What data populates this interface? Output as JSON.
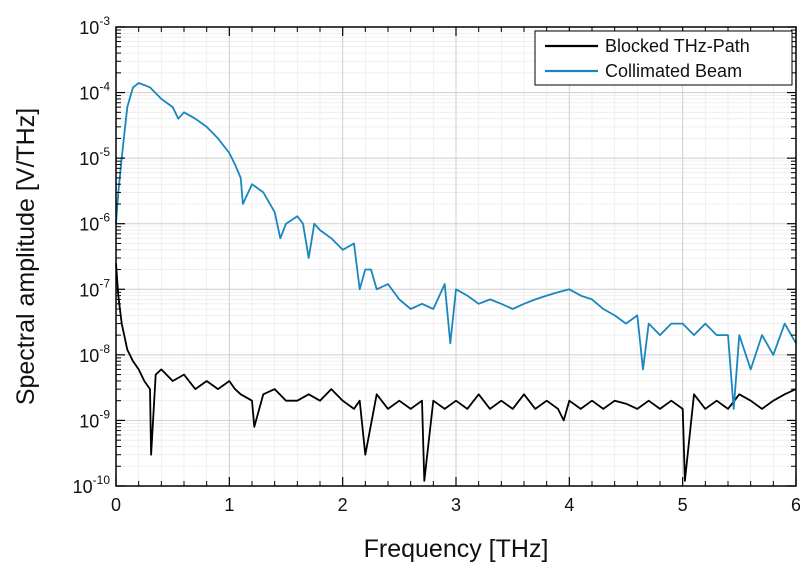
{
  "chart_data": {
    "type": "line",
    "xlabel": "Frequency [THz]",
    "ylabel": "Spectral amplitude [V/THz]",
    "xlim": [
      0,
      6
    ],
    "ylim": [
      1e-10,
      0.001
    ],
    "y_scale": "log",
    "grid": true,
    "minor_grid": true,
    "legend_position": "top-right",
    "x_ticks": [
      {
        "value": 0,
        "label": "0"
      },
      {
        "value": 1,
        "label": "1"
      },
      {
        "value": 2,
        "label": "2"
      },
      {
        "value": 3,
        "label": "3"
      },
      {
        "value": 4,
        "label": "4"
      },
      {
        "value": 5,
        "label": "5"
      },
      {
        "value": 6,
        "label": "6"
      }
    ],
    "y_ticks": [
      {
        "value": 1e-10,
        "base": "10",
        "exp": "-10"
      },
      {
        "value": 1e-09,
        "base": "10",
        "exp": "-9"
      },
      {
        "value": 1e-08,
        "base": "10",
        "exp": "-8"
      },
      {
        "value": 1e-07,
        "base": "10",
        "exp": "-7"
      },
      {
        "value": 1e-06,
        "base": "10",
        "exp": "-6"
      },
      {
        "value": 1e-05,
        "base": "10",
        "exp": "-5"
      },
      {
        "value": 0.0001,
        "base": "10",
        "exp": "-4"
      },
      {
        "value": 0.001,
        "base": "10",
        "exp": "-3"
      }
    ],
    "series": [
      {
        "name": "Blocked THz-Path",
        "color": "#000000",
        "x": [
          0.0,
          0.02,
          0.05,
          0.1,
          0.15,
          0.2,
          0.25,
          0.3,
          0.31,
          0.35,
          0.4,
          0.5,
          0.6,
          0.7,
          0.8,
          0.9,
          1.0,
          1.05,
          1.1,
          1.2,
          1.22,
          1.3,
          1.4,
          1.5,
          1.6,
          1.7,
          1.8,
          1.9,
          2.0,
          2.1,
          2.15,
          2.2,
          2.3,
          2.4,
          2.5,
          2.6,
          2.7,
          2.72,
          2.8,
          2.9,
          3.0,
          3.1,
          3.2,
          3.3,
          3.4,
          3.5,
          3.6,
          3.7,
          3.8,
          3.9,
          3.95,
          4.0,
          4.1,
          4.2,
          4.3,
          4.4,
          4.5,
          4.6,
          4.7,
          4.8,
          4.9,
          5.0,
          5.02,
          5.1,
          5.2,
          5.3,
          5.4,
          5.5,
          5.6,
          5.7,
          5.8,
          5.9,
          6.0
        ],
        "values": [
          2.5e-07,
          8e-08,
          3e-08,
          1.2e-08,
          8e-09,
          6e-09,
          4e-09,
          3e-09,
          3e-10,
          5e-09,
          6e-09,
          4e-09,
          5e-09,
          3e-09,
          4e-09,
          3e-09,
          4e-09,
          3e-09,
          2.5e-09,
          2e-09,
          8e-10,
          2.5e-09,
          3e-09,
          2e-09,
          2e-09,
          2.5e-09,
          2e-09,
          3e-09,
          2e-09,
          1.5e-09,
          2e-09,
          3e-10,
          2.5e-09,
          1.5e-09,
          2e-09,
          1.5e-09,
          2e-09,
          1.2e-10,
          2e-09,
          1.5e-09,
          2e-09,
          1.5e-09,
          2.5e-09,
          1.5e-09,
          2e-09,
          1.5e-09,
          2.5e-09,
          1.5e-09,
          2e-09,
          1.5e-09,
          1e-09,
          2e-09,
          1.5e-09,
          2e-09,
          1.5e-09,
          2e-09,
          1.8e-09,
          1.5e-09,
          2e-09,
          1.5e-09,
          2e-09,
          1.5e-09,
          1.2e-10,
          2.5e-09,
          1.5e-09,
          2e-09,
          1.5e-09,
          2.5e-09,
          2e-09,
          1.5e-09,
          2e-09,
          2.5e-09,
          3e-09
        ]
      },
      {
        "name": "Collimated Beam",
        "color": "#1a86c0",
        "x": [
          0.0,
          0.02,
          0.05,
          0.08,
          0.1,
          0.15,
          0.2,
          0.25,
          0.3,
          0.4,
          0.5,
          0.55,
          0.6,
          0.7,
          0.8,
          0.9,
          1.0,
          1.05,
          1.1,
          1.12,
          1.2,
          1.3,
          1.4,
          1.45,
          1.5,
          1.6,
          1.65,
          1.7,
          1.75,
          1.8,
          1.9,
          2.0,
          2.1,
          2.15,
          2.2,
          2.25,
          2.3,
          2.4,
          2.5,
          2.6,
          2.7,
          2.8,
          2.9,
          2.95,
          3.0,
          3.1,
          3.2,
          3.3,
          3.4,
          3.5,
          3.6,
          3.7,
          3.8,
          3.9,
          4.0,
          4.1,
          4.2,
          4.3,
          4.4,
          4.5,
          4.6,
          4.65,
          4.7,
          4.8,
          4.9,
          5.0,
          5.1,
          5.2,
          5.3,
          5.4,
          5.45,
          5.5,
          5.6,
          5.7,
          5.8,
          5.9,
          6.0
        ],
        "values": [
          1e-06,
          3e-06,
          1e-05,
          3e-05,
          6e-05,
          0.00012,
          0.00014,
          0.00013,
          0.00012,
          8e-05,
          6e-05,
          4e-05,
          5e-05,
          4e-05,
          3e-05,
          2e-05,
          1.2e-05,
          8e-06,
          5e-06,
          2e-06,
          4e-06,
          3e-06,
          1.5e-06,
          6e-07,
          1e-06,
          1.3e-06,
          1e-06,
          3e-07,
          1e-06,
          8e-07,
          6e-07,
          4e-07,
          5e-07,
          1e-07,
          2e-07,
          2e-07,
          1e-07,
          1.2e-07,
          7e-08,
          5e-08,
          6e-08,
          5e-08,
          1.2e-07,
          1.5e-08,
          1e-07,
          8e-08,
          6e-08,
          7e-08,
          6e-08,
          5e-08,
          6e-08,
          7e-08,
          8e-08,
          9e-08,
          1e-07,
          8e-08,
          7e-08,
          5e-08,
          4e-08,
          3e-08,
          4e-08,
          6e-09,
          3e-08,
          2e-08,
          3e-08,
          3e-08,
          2e-08,
          3e-08,
          2e-08,
          2e-08,
          1.5e-09,
          2e-08,
          6e-09,
          2e-08,
          1e-08,
          3e-08,
          1.5e-08
        ]
      }
    ]
  }
}
